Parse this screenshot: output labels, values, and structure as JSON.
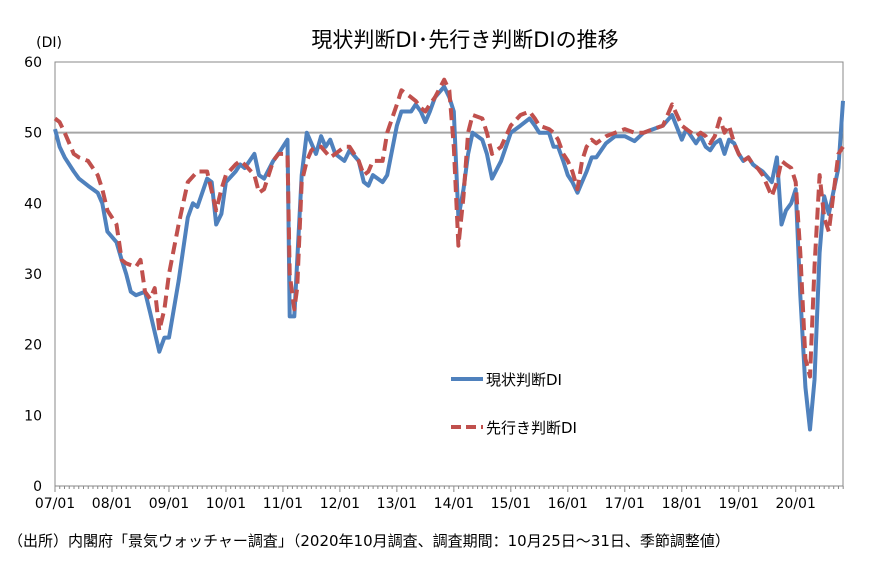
{
  "chart_data": {
    "type": "line",
    "title": "現状判断DI･先行き判断DIの推移",
    "y_unit": "(DI)",
    "ylim": [
      0,
      60
    ],
    "y_ticks": [
      0,
      10,
      20,
      30,
      40,
      50,
      60
    ],
    "x_ticks": [
      "07/01",
      "08/01",
      "09/01",
      "10/01",
      "11/01",
      "12/01",
      "13/01",
      "14/01",
      "15/01",
      "16/01",
      "17/01",
      "18/01",
      "19/01",
      "20/01"
    ],
    "reference_line": 50,
    "legend_position": "center-right",
    "series": [
      {
        "name": "現状判断DI",
        "style": "solid",
        "color": "#4F81BD",
        "points": [
          [
            0,
            50.5
          ],
          [
            0.08,
            48
          ],
          [
            0.17,
            46.5
          ],
          [
            0.33,
            44.5
          ],
          [
            0.42,
            43.5
          ],
          [
            0.58,
            42.5
          ],
          [
            0.75,
            41.5
          ],
          [
            0.83,
            40
          ],
          [
            0.92,
            36
          ],
          [
            1.08,
            34.5
          ],
          [
            1.17,
            32
          ],
          [
            1.25,
            30
          ],
          [
            1.33,
            27.5
          ],
          [
            1.42,
            27
          ],
          [
            1.58,
            27.5
          ],
          [
            1.67,
            24.5
          ],
          [
            1.83,
            19
          ],
          [
            1.92,
            21
          ],
          [
            2.0,
            21
          ],
          [
            2.17,
            29
          ],
          [
            2.33,
            38
          ],
          [
            2.42,
            40
          ],
          [
            2.5,
            39.5
          ],
          [
            2.67,
            43.5
          ],
          [
            2.75,
            43
          ],
          [
            2.83,
            37
          ],
          [
            2.92,
            38.5
          ],
          [
            3.0,
            43
          ],
          [
            3.17,
            44.5
          ],
          [
            3.25,
            45.5
          ],
          [
            3.33,
            45
          ],
          [
            3.5,
            47
          ],
          [
            3.58,
            44
          ],
          [
            3.67,
            43.5
          ],
          [
            3.83,
            46
          ],
          [
            3.92,
            47
          ],
          [
            4.0,
            48
          ],
          [
            4.08,
            49
          ],
          [
            4.12,
            24
          ],
          [
            4.2,
            24
          ],
          [
            4.33,
            44
          ],
          [
            4.42,
            50
          ],
          [
            4.5,
            48.5
          ],
          [
            4.58,
            47
          ],
          [
            4.67,
            49.5
          ],
          [
            4.75,
            48
          ],
          [
            4.83,
            49
          ],
          [
            4.92,
            47
          ],
          [
            5.08,
            46
          ],
          [
            5.17,
            47.5
          ],
          [
            5.33,
            46
          ],
          [
            5.42,
            43
          ],
          [
            5.5,
            42.5
          ],
          [
            5.58,
            44
          ],
          [
            5.75,
            43
          ],
          [
            5.83,
            44
          ],
          [
            6.0,
            51
          ],
          [
            6.08,
            53
          ],
          [
            6.25,
            53
          ],
          [
            6.33,
            54
          ],
          [
            6.42,
            53
          ],
          [
            6.5,
            51.5
          ],
          [
            6.58,
            53
          ],
          [
            6.67,
            55
          ],
          [
            6.83,
            56.5
          ],
          [
            6.92,
            55
          ],
          [
            7.0,
            53
          ],
          [
            7.08,
            38
          ],
          [
            7.17,
            42
          ],
          [
            7.25,
            47
          ],
          [
            7.33,
            50
          ],
          [
            7.5,
            49
          ],
          [
            7.58,
            47
          ],
          [
            7.67,
            43.5
          ],
          [
            7.83,
            46
          ],
          [
            8.0,
            50
          ],
          [
            8.17,
            51
          ],
          [
            8.33,
            52
          ],
          [
            8.42,
            51
          ],
          [
            8.5,
            50
          ],
          [
            8.67,
            50
          ],
          [
            8.75,
            48
          ],
          [
            8.83,
            48
          ],
          [
            8.92,
            46
          ],
          [
            9.0,
            44
          ],
          [
            9.08,
            43
          ],
          [
            9.17,
            41.5
          ],
          [
            9.25,
            43
          ],
          [
            9.33,
            44.5
          ],
          [
            9.42,
            46.5
          ],
          [
            9.5,
            46.5
          ],
          [
            9.67,
            48.5
          ],
          [
            9.83,
            49.5
          ],
          [
            10.0,
            49.5
          ],
          [
            10.17,
            48.8
          ],
          [
            10.33,
            50
          ],
          [
            10.5,
            50.5
          ],
          [
            10.67,
            51
          ],
          [
            10.83,
            52.5
          ],
          [
            11.0,
            49
          ],
          [
            11.08,
            50.5
          ],
          [
            11.25,
            48.5
          ],
          [
            11.33,
            49.5
          ],
          [
            11.42,
            48
          ],
          [
            11.5,
            47.5
          ],
          [
            11.58,
            48.5
          ],
          [
            11.67,
            49
          ],
          [
            11.75,
            47
          ],
          [
            11.83,
            49
          ],
          [
            11.92,
            48.5
          ],
          [
            12.0,
            47
          ],
          [
            12.08,
            46
          ],
          [
            12.17,
            46.5
          ],
          [
            12.25,
            45.5
          ],
          [
            12.33,
            45
          ],
          [
            12.42,
            44.5
          ],
          [
            12.58,
            43
          ],
          [
            12.67,
            46.5
          ],
          [
            12.75,
            37
          ],
          [
            12.83,
            39
          ],
          [
            12.92,
            40
          ],
          [
            13.0,
            42
          ],
          [
            13.08,
            27
          ],
          [
            13.17,
            14
          ],
          [
            13.25,
            8
          ],
          [
            13.33,
            15
          ],
          [
            13.42,
            33
          ],
          [
            13.5,
            41
          ],
          [
            13.58,
            38.5
          ],
          [
            13.75,
            45
          ],
          [
            13.83,
            54.5
          ]
        ]
      },
      {
        "name": "先行き判断DI",
        "style": "dashed",
        "color": "#C0504D",
        "points": [
          [
            0,
            52
          ],
          [
            0.08,
            51.5
          ],
          [
            0.17,
            50
          ],
          [
            0.33,
            47
          ],
          [
            0.42,
            46.5
          ],
          [
            0.58,
            46
          ],
          [
            0.75,
            44
          ],
          [
            0.83,
            42
          ],
          [
            0.92,
            39
          ],
          [
            1.08,
            37
          ],
          [
            1.17,
            32
          ],
          [
            1.25,
            31.5
          ],
          [
            1.42,
            31
          ],
          [
            1.5,
            32
          ],
          [
            1.58,
            27.5
          ],
          [
            1.67,
            26.5
          ],
          [
            1.75,
            28
          ],
          [
            1.83,
            22
          ],
          [
            1.92,
            25
          ],
          [
            2.0,
            30
          ],
          [
            2.17,
            37
          ],
          [
            2.33,
            43
          ],
          [
            2.5,
            44.5
          ],
          [
            2.67,
            44.5
          ],
          [
            2.83,
            39
          ],
          [
            2.92,
            42
          ],
          [
            3.0,
            44
          ],
          [
            3.17,
            45.5
          ],
          [
            3.25,
            46
          ],
          [
            3.33,
            45.5
          ],
          [
            3.5,
            44
          ],
          [
            3.58,
            41.5
          ],
          [
            3.67,
            42
          ],
          [
            3.83,
            46
          ],
          [
            3.92,
            47
          ],
          [
            4.0,
            47
          ],
          [
            4.08,
            47
          ],
          [
            4.12,
            30
          ],
          [
            4.2,
            25
          ],
          [
            4.25,
            28
          ],
          [
            4.33,
            43
          ],
          [
            4.42,
            46
          ],
          [
            4.5,
            47.5
          ],
          [
            4.58,
            48
          ],
          [
            4.67,
            48
          ],
          [
            4.83,
            46.5
          ],
          [
            4.92,
            47
          ],
          [
            5.08,
            48
          ],
          [
            5.17,
            48
          ],
          [
            5.33,
            46
          ],
          [
            5.42,
            44
          ],
          [
            5.5,
            44.5
          ],
          [
            5.58,
            46
          ],
          [
            5.75,
            46
          ],
          [
            5.83,
            50
          ],
          [
            6.0,
            54
          ],
          [
            6.08,
            56
          ],
          [
            6.25,
            55
          ],
          [
            6.33,
            54.5
          ],
          [
            6.42,
            53.5
          ],
          [
            6.5,
            53
          ],
          [
            6.58,
            54
          ],
          [
            6.67,
            55
          ],
          [
            6.83,
            57.5
          ],
          [
            6.92,
            56
          ],
          [
            7.0,
            48
          ],
          [
            7.08,
            34
          ],
          [
            7.17,
            41
          ],
          [
            7.25,
            50
          ],
          [
            7.33,
            52.5
          ],
          [
            7.5,
            52
          ],
          [
            7.58,
            50
          ],
          [
            7.67,
            47
          ],
          [
            7.83,
            48
          ],
          [
            8.0,
            51
          ],
          [
            8.17,
            52.5
          ],
          [
            8.33,
            53
          ],
          [
            8.42,
            52
          ],
          [
            8.5,
            51
          ],
          [
            8.67,
            50.5
          ],
          [
            8.75,
            50
          ],
          [
            8.83,
            49
          ],
          [
            8.92,
            47
          ],
          [
            9.0,
            46
          ],
          [
            9.08,
            44.5
          ],
          [
            9.17,
            42
          ],
          [
            9.25,
            46
          ],
          [
            9.33,
            48
          ],
          [
            9.42,
            49
          ],
          [
            9.5,
            48.5
          ],
          [
            9.67,
            49.5
          ],
          [
            9.83,
            50
          ],
          [
            10.0,
            50.5
          ],
          [
            10.17,
            50
          ],
          [
            10.33,
            50
          ],
          [
            10.5,
            50.5
          ],
          [
            10.67,
            51
          ],
          [
            10.83,
            54
          ],
          [
            11.0,
            51
          ],
          [
            11.08,
            50.5
          ],
          [
            11.25,
            49.5
          ],
          [
            11.33,
            50
          ],
          [
            11.42,
            49.5
          ],
          [
            11.5,
            48.5
          ],
          [
            11.58,
            49.5
          ],
          [
            11.67,
            52
          ],
          [
            11.75,
            50
          ],
          [
            11.83,
            51
          ],
          [
            11.92,
            48.5
          ],
          [
            12.0,
            47
          ],
          [
            12.08,
            46
          ],
          [
            12.17,
            46.5
          ],
          [
            12.25,
            45.5
          ],
          [
            12.33,
            45
          ],
          [
            12.42,
            44
          ],
          [
            12.58,
            41
          ],
          [
            12.67,
            43
          ],
          [
            12.75,
            46
          ],
          [
            12.83,
            45.5
          ],
          [
            12.92,
            45
          ],
          [
            13.0,
            43
          ],
          [
            13.08,
            33
          ],
          [
            13.17,
            18
          ],
          [
            13.25,
            15.5
          ],
          [
            13.33,
            31
          ],
          [
            13.42,
            44
          ],
          [
            13.5,
            38
          ],
          [
            13.58,
            36
          ],
          [
            13.75,
            47
          ],
          [
            13.83,
            48
          ]
        ]
      }
    ]
  },
  "source_note": "（出所）内閣府「景気ウォッチャー調査」（2020年10月調査、調査期間：10月25日～31日、季節調整値）"
}
